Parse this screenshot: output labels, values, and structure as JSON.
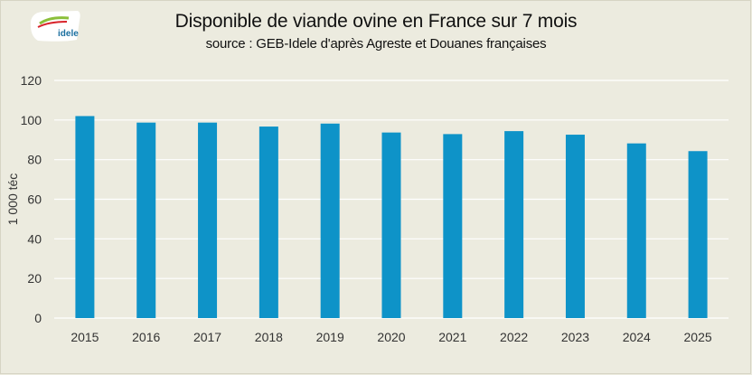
{
  "logo": {
    "text": "idele"
  },
  "colors": {
    "bar": "#0e93c8",
    "grid": "#ffffff",
    "background": "#ecebdf"
  },
  "chart_data": {
    "type": "bar",
    "title": "Disponible de viande ovine en France sur 7 mois",
    "subtitle": "source : GEB-Idele d'après Agreste et Douanes françaises",
    "ylabel": "1 000 téc",
    "xlabel": "",
    "categories": [
      "2015",
      "2016",
      "2017",
      "2018",
      "2019",
      "2020",
      "2021",
      "2022",
      "2023",
      "2024",
      "2025"
    ],
    "values": [
      102,
      98.7,
      98.7,
      96.7,
      98.2,
      93.7,
      92.9,
      94.4,
      92.6,
      88.2,
      84.3
    ],
    "ylim": [
      0,
      120
    ],
    "yticks": [
      0,
      20,
      40,
      60,
      80,
      100,
      120
    ],
    "grid": true,
    "legend": "none"
  }
}
